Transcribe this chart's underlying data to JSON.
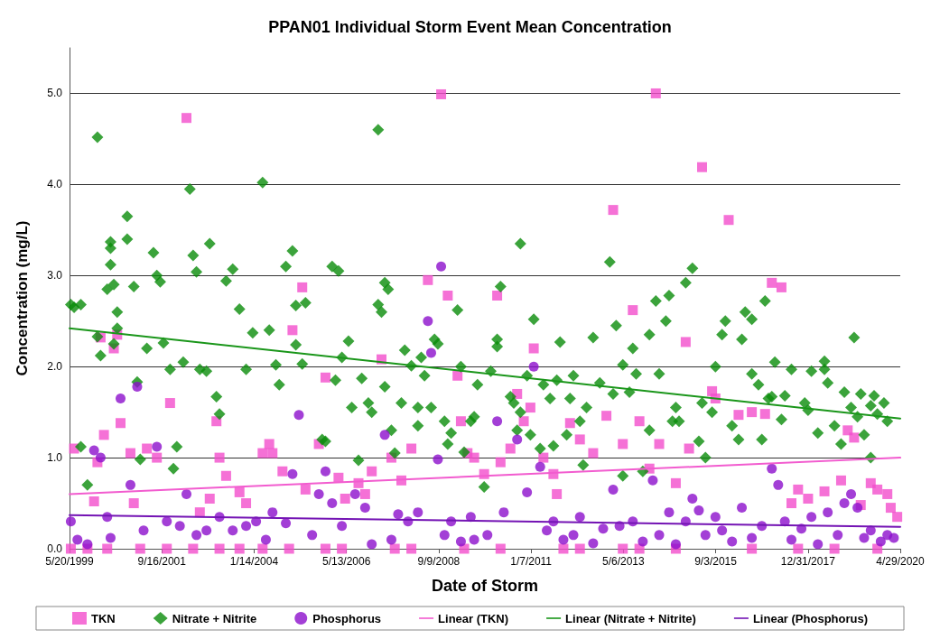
{
  "chart_data": {
    "type": "scatter",
    "title": "PPAN01 Individual Storm Event Mean Concentration",
    "xlabel": "Date of Storm",
    "ylabel": "Concentration (mg/L)",
    "xlim": [
      "1999-05-20",
      "2020-04-29"
    ],
    "xticks": [
      {
        "value": "1999-05-20",
        "label": "5/20/1999"
      },
      {
        "value": "2001-09-16",
        "label": "9/16/2001"
      },
      {
        "value": "2004-01-14",
        "label": "1/14/2004"
      },
      {
        "value": "2006-05-13",
        "label": "5/13/2006"
      },
      {
        "value": "2008-09-09",
        "label": "9/9/2008"
      },
      {
        "value": "2011-01-07",
        "label": "1/7/2011"
      },
      {
        "value": "2013-05-06",
        "label": "5/6/2013"
      },
      {
        "value": "2015-09-03",
        "label": "9/3/2015"
      },
      {
        "value": "2017-12-31",
        "label": "12/31/2017"
      },
      {
        "value": "2020-04-29",
        "label": "4/29/2020"
      }
    ],
    "ylim": [
      0,
      5.5
    ],
    "yticks": [
      {
        "value": 0,
        "label": "0.0"
      },
      {
        "value": 1,
        "label": "1.0"
      },
      {
        "value": 2,
        "label": "2.0"
      },
      {
        "value": 3,
        "label": "3.0"
      },
      {
        "value": 4,
        "label": "4.0"
      },
      {
        "value": 5,
        "label": "5.0"
      }
    ],
    "grid": "y",
    "legend": "bottom",
    "series": [
      {
        "name": "TKN",
        "marker": "square",
        "color": "#f24dcc",
        "x": [
          "1999-07",
          "2000-01",
          "2000-02",
          "2000-03",
          "2000-04",
          "2000-07",
          "2000-08",
          "2000-09",
          "2000-12",
          "2001-01",
          "2001-05",
          "2001-08",
          "2001-12",
          "2002-05",
          "2002-09",
          "2002-12",
          "2003-02",
          "2003-03",
          "2003-05",
          "2003-09",
          "2003-11",
          "2004-04",
          "2004-06",
          "2004-07",
          "2004-10",
          "2005-01",
          "2005-04",
          "2005-05",
          "2005-09",
          "2005-11",
          "2006-03",
          "2006-05",
          "2006-09",
          "2006-11",
          "2007-01",
          "2007-04",
          "2007-07",
          "2007-10",
          "2008-01",
          "2008-06",
          "2008-10",
          "2008-12",
          "2009-03",
          "2009-04",
          "2009-06",
          "2009-08",
          "2009-11",
          "2010-03",
          "2010-04",
          "2010-07",
          "2010-09",
          "2010-11",
          "2011-01",
          "2011-02",
          "2011-05",
          "2011-08",
          "2011-09",
          "2012-01",
          "2012-04",
          "2012-08",
          "2012-12",
          "2013-02",
          "2013-05",
          "2013-08",
          "2013-10",
          "2014-01",
          "2014-03",
          "2014-04",
          "2014-09",
          "2014-12",
          "2015-01",
          "2015-05",
          "2015-08",
          "2015-09",
          "2016-01",
          "2016-04",
          "2016-08",
          "2016-12",
          "2017-02",
          "2017-05",
          "2017-08",
          "2017-10",
          "2018-01",
          "2018-06",
          "2018-11",
          "2019-01",
          "2019-03",
          "2019-05",
          "2019-08",
          "2019-10",
          "2020-01",
          "2020-02",
          "2020-04",
          "1999-06",
          "1999-11",
          "2000-05",
          "2001-03",
          "2001-11",
          "2002-07",
          "2003-03",
          "2003-09",
          "2004-04",
          "2004-12",
          "2005-11",
          "2006-04",
          "2007-08",
          "2008-01",
          "2009-05",
          "2010-04",
          "2011-11",
          "2012-04",
          "2013-05",
          "2013-10",
          "2014-09",
          "2016-08",
          "2017-10",
          "2018-09",
          "2019-10"
        ],
        "values": [
          1.1,
          0.52,
          0.95,
          2.32,
          1.25,
          2.2,
          2.35,
          1.38,
          1.05,
          0.5,
          1.1,
          1.0,
          1.6,
          4.73,
          0.4,
          0.55,
          1.4,
          1.0,
          0.8,
          0.62,
          0.5,
          1.05,
          1.15,
          1.05,
          0.85,
          2.4,
          2.87,
          0.65,
          1.15,
          1.88,
          0.78,
          0.55,
          0.72,
          0.6,
          0.85,
          2.08,
          1.0,
          0.75,
          1.1,
          2.95,
          4.99,
          2.78,
          1.9,
          1.4,
          1.05,
          1.0,
          0.82,
          2.78,
          0.95,
          1.1,
          1.7,
          1.4,
          1.55,
          2.2,
          1.0,
          0.82,
          0.6,
          1.38,
          1.2,
          1.05,
          1.46,
          3.72,
          1.15,
          2.62,
          1.4,
          0.88,
          5.0,
          1.15,
          0.72,
          2.27,
          1.1,
          4.19,
          1.73,
          1.65,
          3.61,
          1.47,
          1.5,
          1.48,
          2.92,
          2.87,
          0.5,
          0.65,
          0.55,
          0.63,
          0.75,
          1.3,
          1.22,
          0.48,
          0.72,
          0.65,
          0.6,
          0.45,
          0.35,
          0,
          0,
          0,
          0,
          0,
          0,
          0,
          0,
          0,
          0,
          0,
          0,
          0,
          0,
          0,
          0,
          0,
          0,
          0,
          0,
          0,
          0,
          0,
          0,
          0
        ]
      },
      {
        "name": "Nitrate + Nitrite",
        "marker": "diamond",
        "color": "#0a8c0a",
        "x": [
          "1999-06",
          "1999-07",
          "1999-09",
          "1999-09",
          "1999-11",
          "2000-02",
          "2000-02",
          "2000-03",
          "2000-05",
          "2000-06",
          "2000-06",
          "2000-06",
          "2000-07",
          "2000-08",
          "2000-07",
          "2000-08",
          "2000-11",
          "2000-11",
          "2001-01",
          "2001-02",
          "2001-03",
          "2001-05",
          "2001-07",
          "2001-08",
          "2001-09",
          "2001-10",
          "2001-12",
          "2002-01",
          "2002-02",
          "2002-04",
          "2002-06",
          "2002-07",
          "2002-08",
          "2002-09",
          "2002-11",
          "2002-12",
          "2003-02",
          "2003-03",
          "2003-05",
          "2003-07",
          "2003-09",
          "2003-11",
          "2004-01",
          "2004-04",
          "2004-06",
          "2004-08",
          "2004-09",
          "2004-11",
          "2005-01",
          "2005-02",
          "2005-02",
          "2005-04",
          "2005-05",
          "2005-10",
          "2005-11",
          "2006-01",
          "2006-02",
          "2006-03",
          "2006-04",
          "2006-06",
          "2006-07",
          "2006-09",
          "2006-10",
          "2006-12",
          "2007-01",
          "2007-03",
          "2007-04",
          "2007-03",
          "2007-05",
          "2007-05",
          "2007-06",
          "2007-07",
          "2007-08",
          "2007-10",
          "2007-11",
          "2008-01",
          "2008-03",
          "2008-03",
          "2008-04",
          "2008-05",
          "2008-07",
          "2008-08",
          "2008-09",
          "2008-11",
          "2008-12",
          "2009-01",
          "2009-03",
          "2009-04",
          "2009-05",
          "2009-07",
          "2009-08",
          "2009-09",
          "2009-11",
          "2010-01",
          "2010-03",
          "2010-03",
          "2010-04",
          "2010-07",
          "2010-08",
          "2010-09",
          "2010-10",
          "2010-10",
          "2010-12",
          "2011-01",
          "2011-02",
          "2011-04",
          "2011-05",
          "2011-07",
          "2011-08",
          "2011-09",
          "2011-10",
          "2011-12",
          "2012-01",
          "2012-02",
          "2012-04",
          "2012-05",
          "2012-06",
          "2012-08",
          "2012-10",
          "2013-01",
          "2013-02",
          "2013-03",
          "2013-05",
          "2013-05",
          "2013-07",
          "2013-08",
          "2013-09",
          "2013-11",
          "2014-01",
          "2014-01",
          "2014-03",
          "2014-04",
          "2014-06",
          "2014-07",
          "2014-08",
          "2014-09",
          "2014-10",
          "2014-12",
          "2015-02",
          "2015-04",
          "2015-05",
          "2015-06",
          "2015-08",
          "2015-09",
          "2015-11",
          "2015-12",
          "2016-02",
          "2016-04",
          "2016-05",
          "2016-06",
          "2016-08",
          "2016-08",
          "2016-10",
          "2016-11",
          "2016-12",
          "2017-01",
          "2017-02",
          "2017-03",
          "2017-05",
          "2017-06",
          "2017-08",
          "2017-12",
          "2018-01",
          "2018-02",
          "2018-04",
          "2018-06",
          "2018-06",
          "2018-07",
          "2018-09",
          "2018-11",
          "2018-12",
          "2019-02",
          "2019-03",
          "2019-04",
          "2019-05",
          "2019-06",
          "2019-08",
          "2019-09",
          "2019-10",
          "2019-12",
          "2020-01",
          "2019-08"
        ],
        "values": [
          2.68,
          2.65,
          2.68,
          1.12,
          0.7,
          4.52,
          2.33,
          2.12,
          2.85,
          3.37,
          3.3,
          3.12,
          2.9,
          2.6,
          2.25,
          2.42,
          3.65,
          3.4,
          2.88,
          1.83,
          0.98,
          2.2,
          3.25,
          3.0,
          2.93,
          2.26,
          1.97,
          0.88,
          1.12,
          2.05,
          3.95,
          3.22,
          3.04,
          1.97,
          1.95,
          3.35,
          1.67,
          1.48,
          2.94,
          3.07,
          2.63,
          1.97,
          2.37,
          4.02,
          2.4,
          2.02,
          1.8,
          3.1,
          3.27,
          2.67,
          2.24,
          2.03,
          2.7,
          1.2,
          1.18,
          3.1,
          1.85,
          3.05,
          2.1,
          2.28,
          1.55,
          0.97,
          1.87,
          1.6,
          1.5,
          2.68,
          2.6,
          4.6,
          1.78,
          2.92,
          2.85,
          1.3,
          1.05,
          1.6,
          2.18,
          2.01,
          1.35,
          1.55,
          2.1,
          1.9,
          1.55,
          2.3,
          2.25,
          1.4,
          1.15,
          1.27,
          2.62,
          2.0,
          1.06,
          1.4,
          1.45,
          1.8,
          0.68,
          1.95,
          2.3,
          2.22,
          2.88,
          1.67,
          1.6,
          1.3,
          3.35,
          1.5,
          1.9,
          1.25,
          2.52,
          1.1,
          1.8,
          1.65,
          1.13,
          1.85,
          2.27,
          1.25,
          1.65,
          1.9,
          1.4,
          0.92,
          1.55,
          2.32,
          1.82,
          3.15,
          1.7,
          2.45,
          2.02,
          0.8,
          1.72,
          2.2,
          1.92,
          0.85,
          1.3,
          2.35,
          2.72,
          1.92,
          2.5,
          2.78,
          1.4,
          1.55,
          1.4,
          2.92,
          3.08,
          1.18,
          1.6,
          1.0,
          1.5,
          2.0,
          2.35,
          2.5,
          1.35,
          1.2,
          2.3,
          2.6,
          2.52,
          1.92,
          1.8,
          1.2,
          2.72,
          1.65,
          1.67,
          2.05,
          1.42,
          1.68,
          1.97,
          1.6,
          1.52,
          1.95,
          1.27,
          2.06,
          1.97,
          1.82,
          1.35,
          1.15,
          1.72,
          1.55,
          2.32,
          1.45,
          1.7,
          1.25,
          1.57,
          1.68,
          1.48,
          1.6,
          1.4,
          1.0
        ]
      },
      {
        "name": "Phosphorus",
        "marker": "circle",
        "color": "#8c0fcc",
        "x": [
          "1999-06",
          "1999-08",
          "1999-11",
          "2000-01",
          "2000-03",
          "2000-05",
          "2000-06",
          "2000-09",
          "2000-12",
          "2001-02",
          "2001-04",
          "2001-08",
          "2001-11",
          "2002-03",
          "2002-05",
          "2002-08",
          "2002-11",
          "2003-03",
          "2003-07",
          "2003-11",
          "2004-02",
          "2004-05",
          "2004-07",
          "2004-11",
          "2005-01",
          "2005-03",
          "2005-07",
          "2005-09",
          "2005-11",
          "2006-01",
          "2006-04",
          "2006-08",
          "2006-11",
          "2007-01",
          "2007-05",
          "2007-07",
          "2007-09",
          "2007-12",
          "2008-03",
          "2008-06",
          "2008-07",
          "2008-09",
          "2008-10",
          "2008-11",
          "2009-01",
          "2009-04",
          "2009-07",
          "2009-08",
          "2009-12",
          "2010-03",
          "2010-05",
          "2010-09",
          "2010-12",
          "2011-02",
          "2011-04",
          "2011-06",
          "2011-08",
          "2011-11",
          "2012-02",
          "2012-04",
          "2012-08",
          "2012-11",
          "2013-02",
          "2013-04",
          "2013-08",
          "2013-11",
          "2014-02",
          "2014-04",
          "2014-07",
          "2014-09",
          "2014-12",
          "2015-02",
          "2015-04",
          "2015-06",
          "2015-09",
          "2015-11",
          "2016-02",
          "2016-05",
          "2016-08",
          "2016-11",
          "2017-02",
          "2017-04",
          "2017-06",
          "2017-08",
          "2017-11",
          "2018-02",
          "2018-04",
          "2018-07",
          "2018-10",
          "2018-12",
          "2019-02",
          "2019-04",
          "2019-06",
          "2019-08",
          "2019-11",
          "2020-01",
          "2020-03"
        ],
        "values": [
          0.3,
          0.1,
          0.05,
          1.08,
          1.0,
          0.35,
          0.12,
          1.65,
          0.7,
          1.78,
          0.2,
          1.12,
          0.3,
          0.25,
          0.6,
          0.15,
          0.2,
          0.35,
          0.2,
          0.25,
          0.3,
          0.1,
          0.4,
          0.28,
          0.82,
          1.47,
          0.15,
          0.6,
          0.85,
          0.5,
          0.25,
          0.6,
          0.45,
          0.05,
          1.25,
          0.1,
          0.38,
          0.3,
          0.4,
          2.5,
          2.15,
          0.98,
          3.1,
          0.15,
          0.3,
          0.08,
          0.35,
          0.1,
          0.15,
          1.4,
          0.4,
          1.2,
          0.62,
          2.0,
          0.9,
          0.2,
          0.3,
          0.1,
          0.15,
          0.35,
          0.06,
          0.22,
          0.65,
          0.25,
          0.3,
          0.08,
          0.75,
          0.15,
          0.4,
          0.05,
          0.3,
          0.55,
          0.42,
          0.15,
          0.35,
          0.2,
          0.08,
          0.45,
          0.12,
          0.25,
          0.88,
          0.7,
          0.3,
          0.1,
          0.22,
          0.35,
          0.05,
          0.4,
          0.15,
          0.5,
          0.6,
          0.45,
          0.12,
          0.2,
          0.08,
          0.15,
          0.12
        ]
      },
      {
        "name": "Linear (TKN)",
        "type": "line",
        "marker": "none",
        "color": "#f25ccf",
        "x": [
          "1999-05-20",
          "2020-04-29"
        ],
        "values": [
          0.6,
          1.0
        ]
      },
      {
        "name": "Linear (Nitrate + Nitrite)",
        "type": "line",
        "marker": "none",
        "color": "#1a961a",
        "x": [
          "1999-05-20",
          "2020-04-29"
        ],
        "values": [
          2.42,
          1.43
        ]
      },
      {
        "name": "Linear (Phosphorus)",
        "type": "line",
        "marker": "none",
        "color": "#7414b4",
        "x": [
          "1999-05-20",
          "2020-04-29"
        ],
        "values": [
          0.37,
          0.24
        ]
      }
    ]
  }
}
